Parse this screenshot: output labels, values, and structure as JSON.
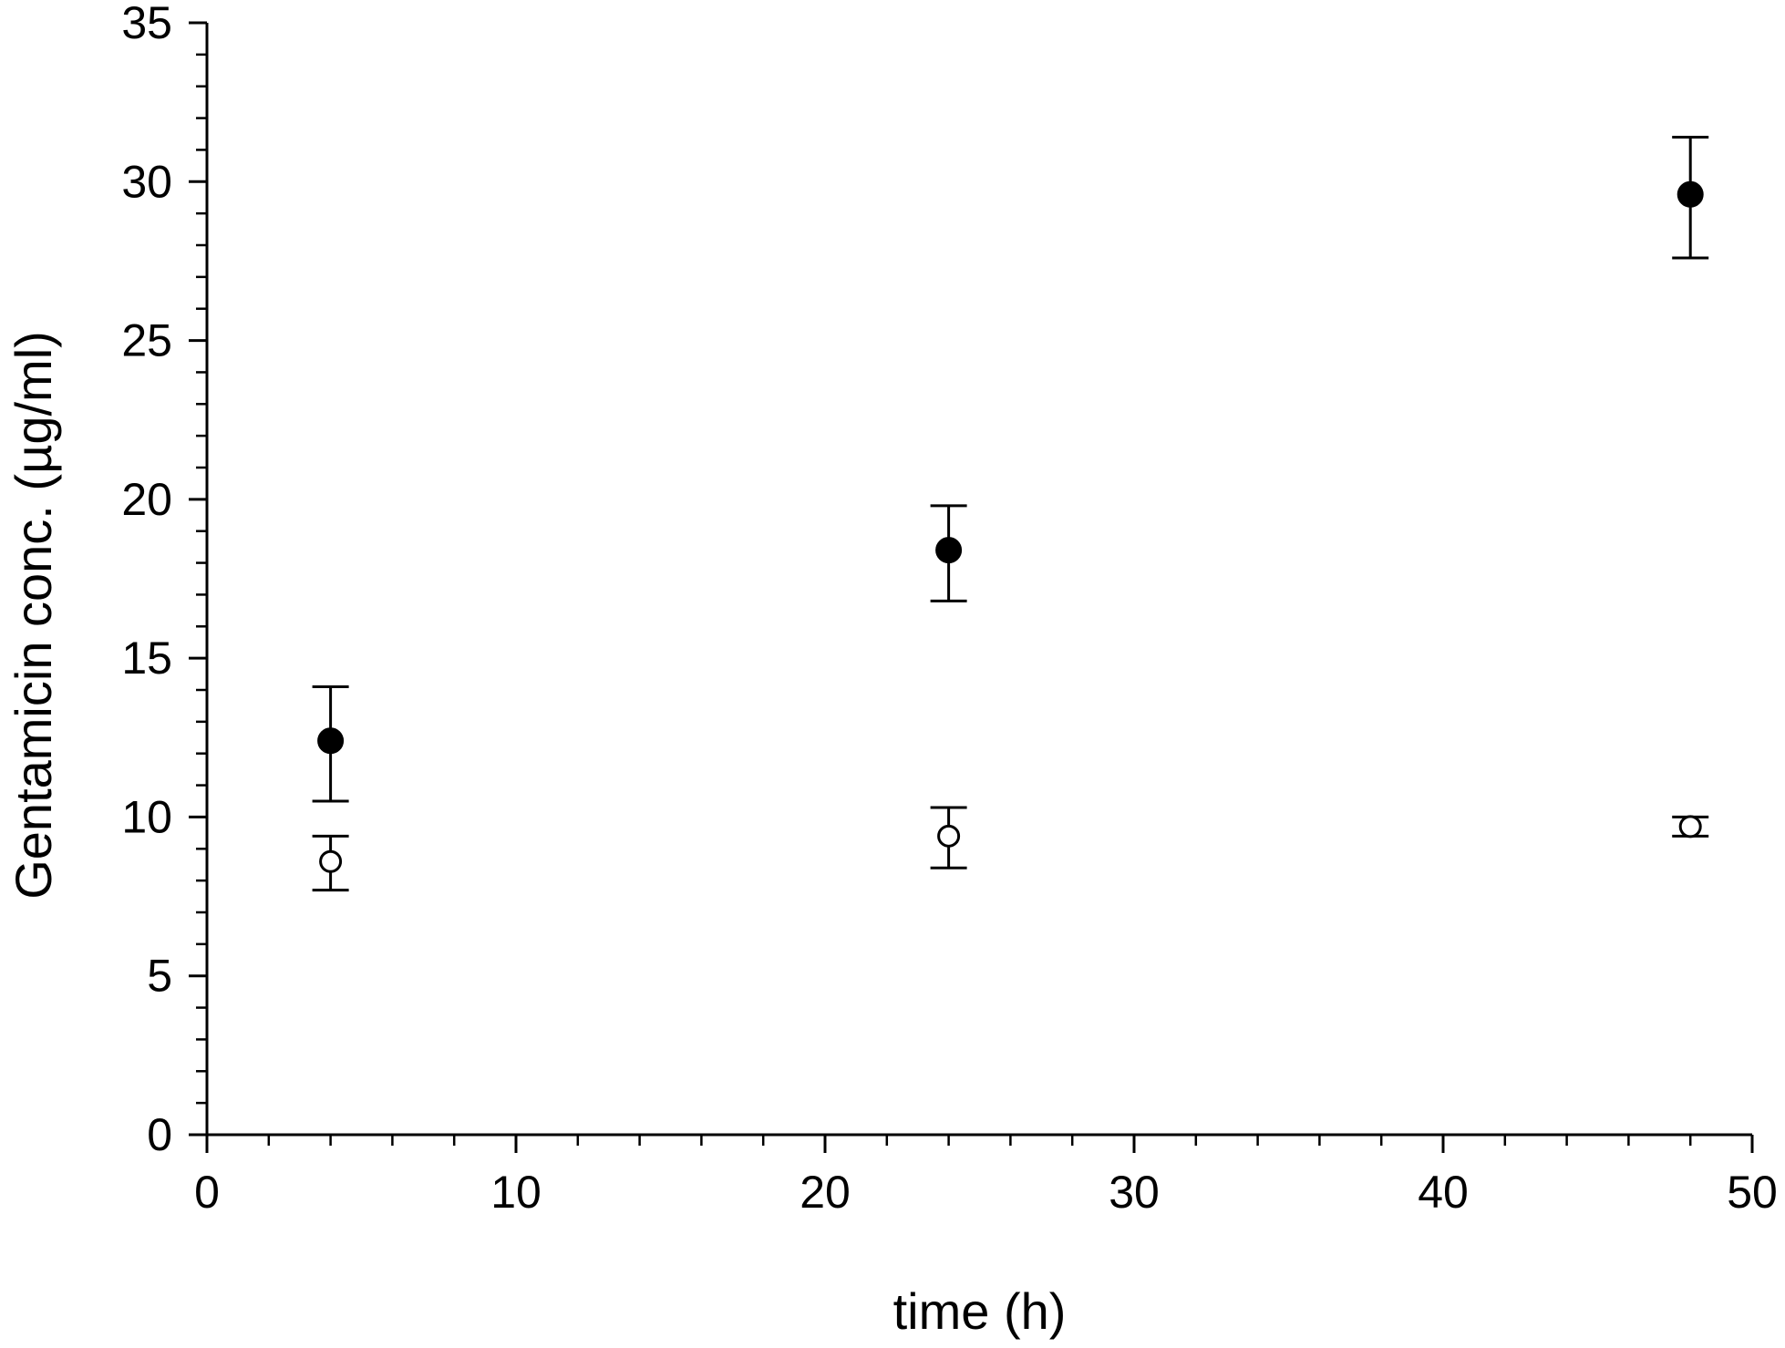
{
  "chart_data": {
    "type": "scatter",
    "title": "",
    "xlabel": "time (h)",
    "ylabel": "Gentamicin conc. (µg/ml)",
    "xlim": [
      0,
      50
    ],
    "ylim": [
      0,
      35
    ],
    "x_major_ticks": [
      0,
      10,
      20,
      30,
      40,
      50
    ],
    "y_major_ticks": [
      0,
      5,
      10,
      15,
      20,
      25,
      30,
      35
    ],
    "grid": false,
    "legend": "none",
    "series": [
      {
        "marker": "filled-circle",
        "color": "#000000",
        "points": [
          {
            "x": 4,
            "y": 12.4,
            "err_low": 10.5,
            "err_high": 14.1
          },
          {
            "x": 24,
            "y": 18.4,
            "err_low": 16.8,
            "err_high": 19.8
          },
          {
            "x": 48,
            "y": 29.6,
            "err_low": 27.6,
            "err_high": 31.4
          }
        ]
      },
      {
        "marker": "open-circle",
        "color": "#000000",
        "points": [
          {
            "x": 4,
            "y": 8.6,
            "err_low": 7.7,
            "err_high": 9.4
          },
          {
            "x": 24,
            "y": 9.4,
            "err_low": 8.4,
            "err_high": 10.3
          },
          {
            "x": 48,
            "y": 9.7,
            "err_low": 9.4,
            "err_high": 10.0
          }
        ]
      }
    ]
  }
}
